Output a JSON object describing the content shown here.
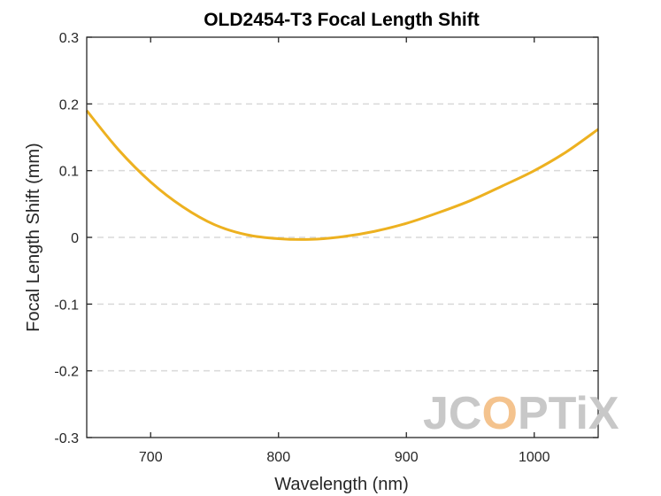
{
  "chart_data": {
    "type": "line",
    "title": "OLD2454-T3 Focal Length Shift",
    "xlabel": "Wavelength (nm)",
    "ylabel": "Focal Length Shift (mm)",
    "xlim": [
      650,
      1050
    ],
    "ylim": [
      -0.3,
      0.3
    ],
    "xticks": [
      700,
      800,
      900,
      1000
    ],
    "xtick_labels": [
      "700",
      "800",
      "900",
      "1000"
    ],
    "yticks": [
      -0.3,
      -0.2,
      -0.1,
      0,
      0.1,
      0.2,
      0.3
    ],
    "ytick_labels": [
      "-0.3",
      "-0.2",
      "-0.1",
      "0",
      "0.1",
      "0.2",
      "0.3"
    ],
    "grid": "horizontal dashed",
    "series": [
      {
        "color": "#EDB120",
        "x": [
          650,
          675,
          700,
          725,
          750,
          775,
          800,
          825,
          850,
          875,
          900,
          925,
          950,
          975,
          1000,
          1025,
          1050
        ],
        "y": [
          0.19,
          0.131,
          0.083,
          0.046,
          0.019,
          0.004,
          -0.002,
          -0.003,
          0.001,
          0.009,
          0.021,
          0.037,
          0.055,
          0.077,
          0.1,
          0.128,
          0.162
        ]
      }
    ]
  },
  "watermark": {
    "text_gray": "JC",
    "text_accent": "O",
    "text_gray2": "PTiX",
    "gray_color": "#c8c8c8",
    "accent_color": "#f4c38e"
  }
}
